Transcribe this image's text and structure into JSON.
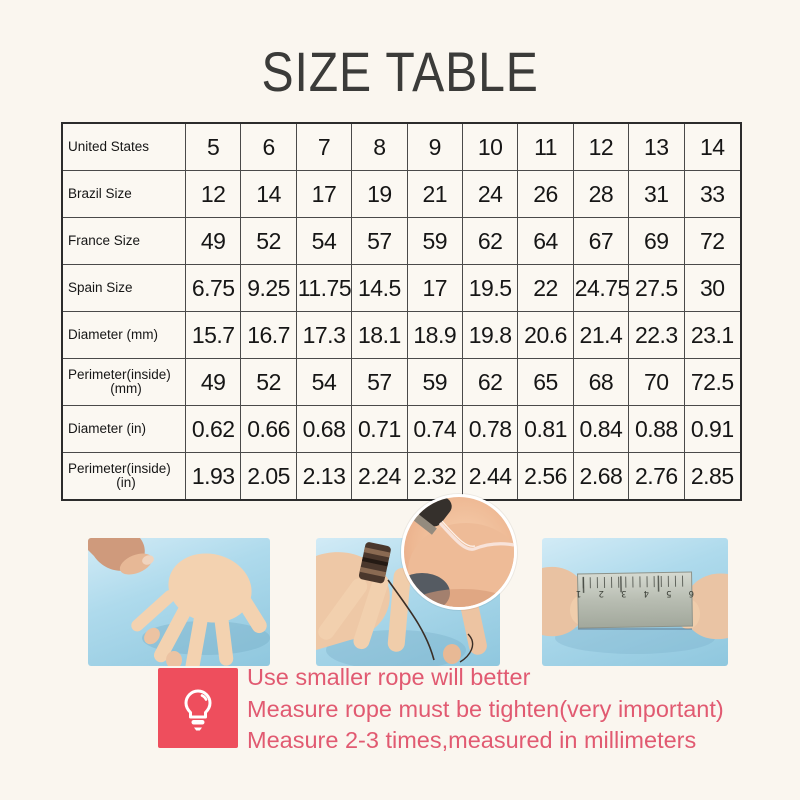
{
  "page": {
    "title": "SIZE TABLE",
    "background_color": "#faf6ef"
  },
  "size_table": {
    "rows": [
      {
        "label": "United States",
        "values": [
          "5",
          "6",
          "7",
          "8",
          "9",
          "10",
          "11",
          "12",
          "13",
          "14"
        ]
      },
      {
        "label": "Brazil Size",
        "values": [
          "12",
          "14",
          "17",
          "19",
          "21",
          "24",
          "26",
          "28",
          "31",
          "33"
        ]
      },
      {
        "label": "France Size",
        "values": [
          "49",
          "52",
          "54",
          "57",
          "59",
          "62",
          "64",
          "67",
          "69",
          "72"
        ]
      },
      {
        "label": "Spain Size",
        "values": [
          "6.75",
          "9.25",
          "11.75",
          "14.5",
          "17",
          "19.5",
          "22",
          "24.75",
          "27.5",
          "30"
        ]
      },
      {
        "label": "Diameter (mm)",
        "values": [
          "15.7",
          "16.7",
          "17.3",
          "18.1",
          "18.9",
          "19.8",
          "20.6",
          "21.4",
          "22.3",
          "23.1"
        ]
      },
      {
        "label": "Perimeter(inside)",
        "label_line2": "(mm)",
        "values": [
          "49",
          "52",
          "54",
          "57",
          "59",
          "62",
          "65",
          "68",
          "70",
          "72.5"
        ]
      },
      {
        "label": "Diameter (in)",
        "values": [
          "0.62",
          "0.66",
          "0.68",
          "0.71",
          "0.74",
          "0.78",
          "0.81",
          "0.84",
          "0.88",
          "0.91"
        ]
      },
      {
        "label": "Perimeter(inside)",
        "label_line2": "(in)",
        "values": [
          "1.93",
          "2.05",
          "2.13",
          "2.24",
          "2.32",
          "2.44",
          "2.56",
          "2.68",
          "2.76",
          "2.85"
        ]
      }
    ]
  },
  "photos": [
    {
      "name": "spread-hand-photo"
    },
    {
      "name": "wrap-rope-photo"
    },
    {
      "name": "ruler-measure-photo",
      "ruler_digits": [
        "6",
        "5",
        "4",
        "3",
        "2",
        "1"
      ]
    },
    {
      "name": "rope-closeup-inset"
    }
  ],
  "tips": {
    "icon": "lightbulb-icon",
    "accent_color": "#ee4e5d",
    "text_color": "#e15a71",
    "lines": [
      "Use smaller rope will better",
      "Measure rope must be tighten(very important)",
      "Measure 2-3 times,measured in millimeters"
    ]
  }
}
